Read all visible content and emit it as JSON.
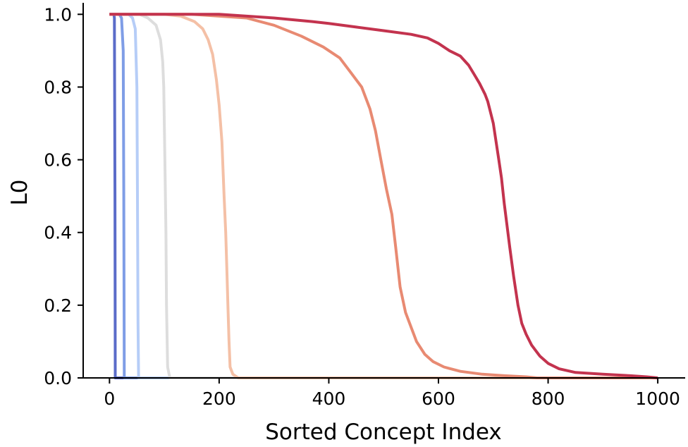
{
  "chart_data": {
    "type": "line",
    "title": "",
    "xlabel": "Sorted Concept Index",
    "ylabel": "L0",
    "xlim": [
      -48,
      1050
    ],
    "ylim": [
      0,
      1.02
    ],
    "xticks": [
      0,
      200,
      400,
      600,
      800,
      1000
    ],
    "yticks": [
      0.0,
      0.2,
      0.4,
      0.6,
      0.8,
      1.0
    ],
    "xtick_labels": [
      "0",
      "200",
      "400",
      "600",
      "800",
      "1000"
    ],
    "ytick_labels": [
      "0.0",
      "0.2",
      "0.4",
      "0.6",
      "0.8",
      "1.0"
    ],
    "grid": false,
    "legend": "none",
    "series": [
      {
        "color": "#5b6cc9",
        "points": [
          [
            0,
            1.0
          ],
          [
            8,
            1.0
          ],
          [
            9,
            0.99
          ],
          [
            10,
            0.5
          ],
          [
            10.5,
            0.0
          ],
          [
            1000,
            0.0
          ]
        ]
      },
      {
        "color": "#7f9de6",
        "points": [
          [
            0,
            1.0
          ],
          [
            18,
            1.0
          ],
          [
            22,
            0.99
          ],
          [
            25,
            0.9
          ],
          [
            26,
            0.5
          ],
          [
            27,
            0.0
          ],
          [
            1000,
            0.0
          ]
        ]
      },
      {
        "color": "#b6cdf7",
        "points": [
          [
            0,
            1.0
          ],
          [
            35,
            1.0
          ],
          [
            42,
            0.99
          ],
          [
            47,
            0.96
          ],
          [
            50,
            0.8
          ],
          [
            51,
            0.5
          ],
          [
            52,
            0.15
          ],
          [
            53,
            0.0
          ],
          [
            1000,
            0.0
          ]
        ]
      },
      {
        "color": "#dddddd",
        "points": [
          [
            0,
            1.0
          ],
          [
            55,
            1.0
          ],
          [
            70,
            0.99
          ],
          [
            85,
            0.97
          ],
          [
            93,
            0.93
          ],
          [
            97,
            0.87
          ],
          [
            99,
            0.8
          ],
          [
            101,
            0.6
          ],
          [
            103,
            0.4
          ],
          [
            104,
            0.2
          ],
          [
            106,
            0.03
          ],
          [
            110,
            0.0
          ],
          [
            1000,
            0.0
          ]
        ]
      },
      {
        "color": "#f4c0a6",
        "points": [
          [
            0,
            1.0
          ],
          [
            100,
            1.0
          ],
          [
            130,
            0.995
          ],
          [
            155,
            0.98
          ],
          [
            170,
            0.96
          ],
          [
            180,
            0.93
          ],
          [
            188,
            0.89
          ],
          [
            195,
            0.82
          ],
          [
            200,
            0.75
          ],
          [
            205,
            0.65
          ],
          [
            209,
            0.5
          ],
          [
            212,
            0.4
          ],
          [
            214,
            0.3
          ],
          [
            216,
            0.2
          ],
          [
            218,
            0.1
          ],
          [
            220,
            0.03
          ],
          [
            225,
            0.01
          ],
          [
            235,
            0.0
          ],
          [
            1000,
            0.0
          ]
        ]
      },
      {
        "color": "#e88a72",
        "points": [
          [
            0,
            1.0
          ],
          [
            150,
            1.0
          ],
          [
            250,
            0.99
          ],
          [
            300,
            0.97
          ],
          [
            350,
            0.94
          ],
          [
            390,
            0.91
          ],
          [
            420,
            0.88
          ],
          [
            440,
            0.84
          ],
          [
            460,
            0.8
          ],
          [
            475,
            0.74
          ],
          [
            485,
            0.68
          ],
          [
            495,
            0.6
          ],
          [
            505,
            0.52
          ],
          [
            515,
            0.45
          ],
          [
            522,
            0.36
          ],
          [
            530,
            0.25
          ],
          [
            540,
            0.18
          ],
          [
            550,
            0.14
          ],
          [
            560,
            0.1
          ],
          [
            575,
            0.065
          ],
          [
            590,
            0.045
          ],
          [
            610,
            0.03
          ],
          [
            640,
            0.018
          ],
          [
            680,
            0.01
          ],
          [
            720,
            0.006
          ],
          [
            760,
            0.003
          ],
          [
            780,
            0.0
          ],
          [
            1000,
            0.0
          ]
        ]
      },
      {
        "color": "#c3334e",
        "points": [
          [
            0,
            1.0
          ],
          [
            200,
            1.0
          ],
          [
            300,
            0.99
          ],
          [
            370,
            0.98
          ],
          [
            400,
            0.975
          ],
          [
            450,
            0.965
          ],
          [
            500,
            0.955
          ],
          [
            550,
            0.945
          ],
          [
            580,
            0.935
          ],
          [
            600,
            0.92
          ],
          [
            620,
            0.9
          ],
          [
            640,
            0.885
          ],
          [
            655,
            0.86
          ],
          [
            665,
            0.835
          ],
          [
            675,
            0.81
          ],
          [
            685,
            0.78
          ],
          [
            690,
            0.76
          ],
          [
            695,
            0.73
          ],
          [
            700,
            0.7
          ],
          [
            705,
            0.65
          ],
          [
            710,
            0.6
          ],
          [
            715,
            0.55
          ],
          [
            720,
            0.48
          ],
          [
            725,
            0.42
          ],
          [
            730,
            0.36
          ],
          [
            737,
            0.28
          ],
          [
            745,
            0.2
          ],
          [
            752,
            0.15
          ],
          [
            760,
            0.12
          ],
          [
            770,
            0.09
          ],
          [
            785,
            0.06
          ],
          [
            800,
            0.04
          ],
          [
            820,
            0.025
          ],
          [
            850,
            0.015
          ],
          [
            900,
            0.01
          ],
          [
            950,
            0.006
          ],
          [
            980,
            0.003
          ],
          [
            1000,
            0.0
          ]
        ]
      }
    ]
  }
}
